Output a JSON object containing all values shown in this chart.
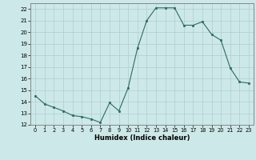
{
  "x": [
    0,
    1,
    2,
    3,
    4,
    5,
    6,
    7,
    8,
    9,
    10,
    11,
    12,
    13,
    14,
    15,
    16,
    17,
    18,
    19,
    20,
    21,
    22,
    23
  ],
  "y": [
    14.5,
    13.8,
    13.5,
    13.2,
    12.8,
    12.7,
    12.5,
    12.2,
    13.9,
    13.2,
    15.2,
    18.6,
    21.0,
    22.1,
    22.1,
    22.1,
    20.6,
    20.6,
    20.9,
    19.8,
    19.3,
    16.9,
    15.7,
    15.6
  ],
  "xlabel": "Humidex (Indice chaleur)",
  "xlim": [
    -0.5,
    23.5
  ],
  "ylim": [
    12,
    22.5
  ],
  "yticks": [
    12,
    13,
    14,
    15,
    16,
    17,
    18,
    19,
    20,
    21,
    22
  ],
  "xticks": [
    0,
    1,
    2,
    3,
    4,
    5,
    6,
    7,
    8,
    9,
    10,
    11,
    12,
    13,
    14,
    15,
    16,
    17,
    18,
    19,
    20,
    21,
    22,
    23
  ],
  "line_color": "#2d6b5e",
  "marker_color": "#2d6b5e",
  "bg_color": "#cde8e8",
  "grid_color": "#b0cece"
}
